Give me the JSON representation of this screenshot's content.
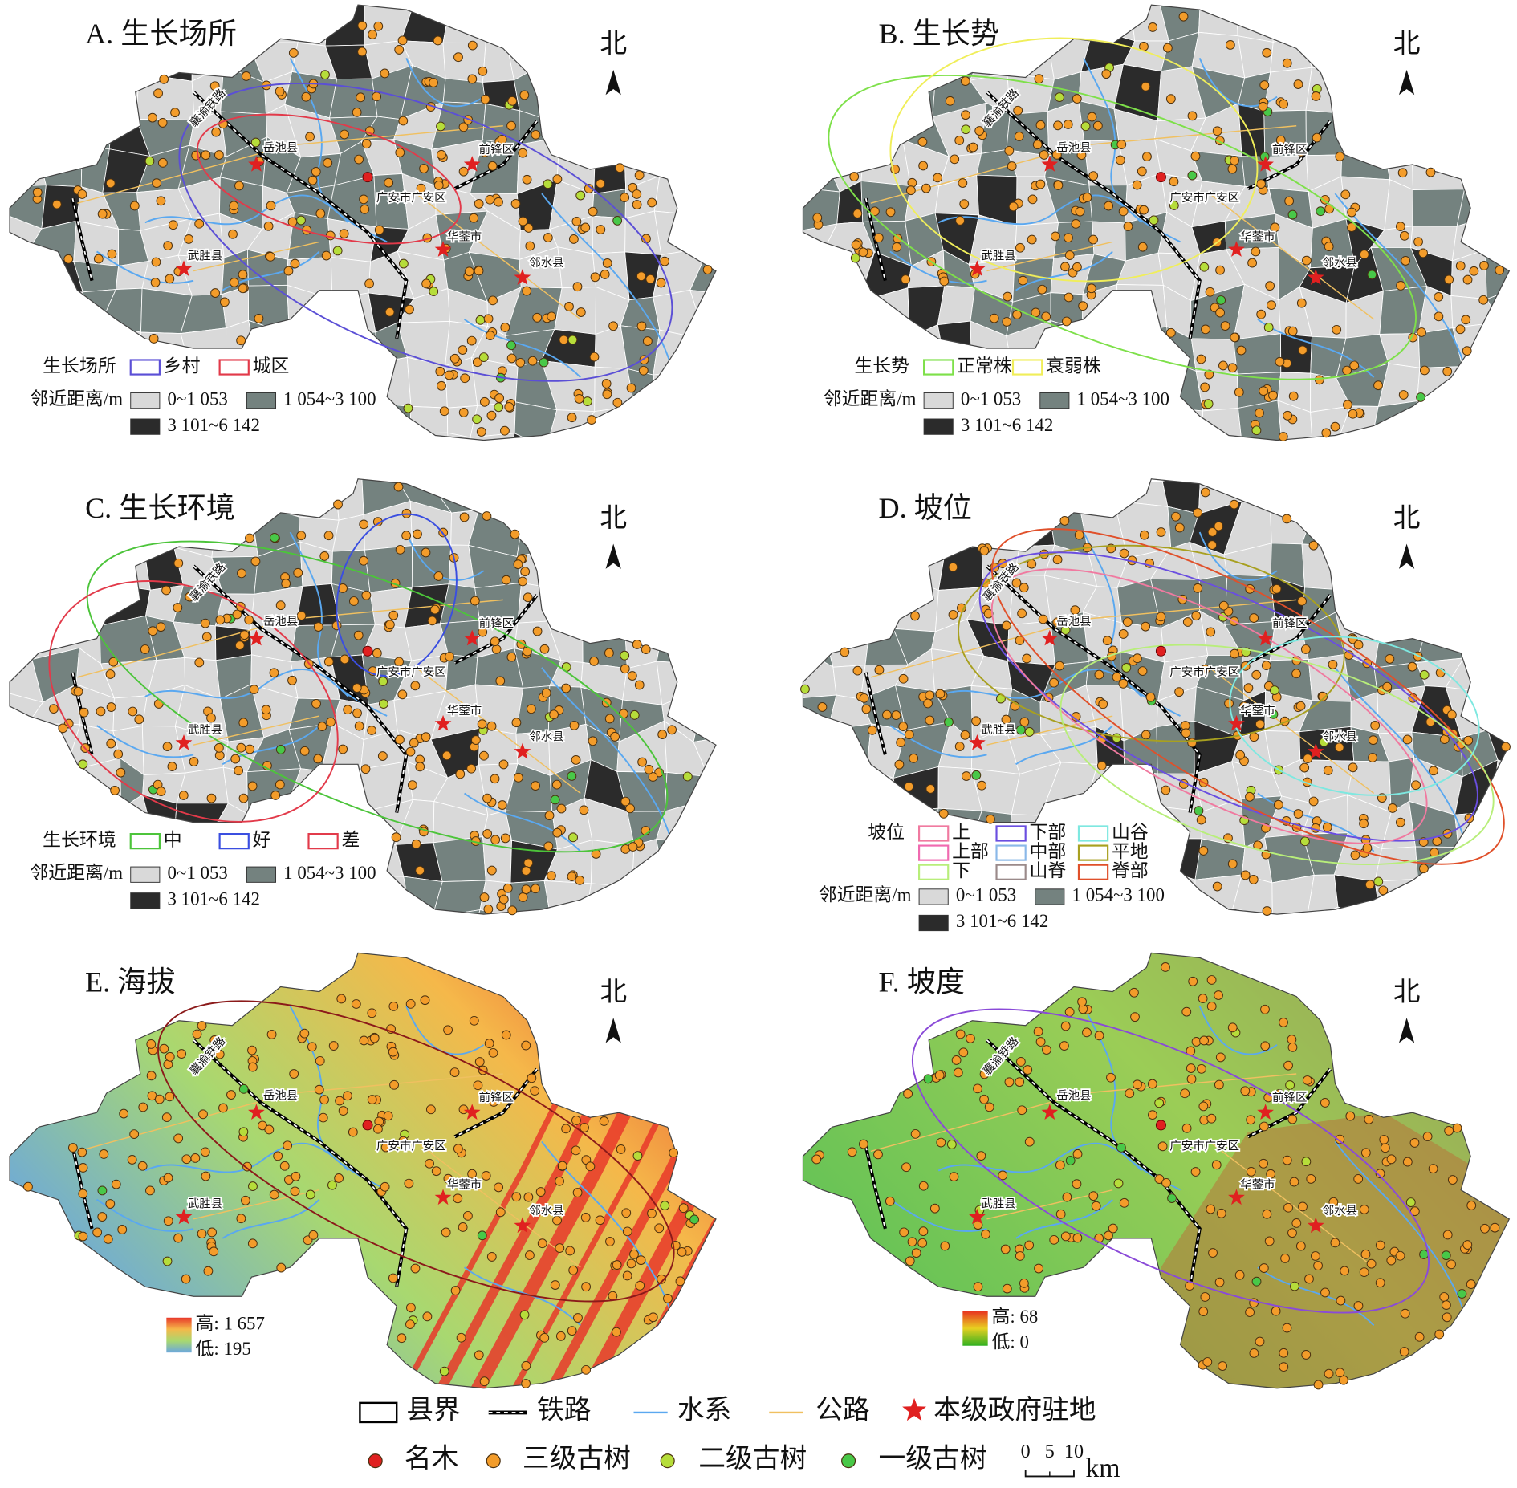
{
  "panels": [
    {
      "title": "A. 生长场所",
      "north": "北",
      "map": "gray",
      "places": [
        "岳池县",
        "前锋区",
        "广安市广安区",
        "华蓥市",
        "武胜县",
        "邻水县"
      ],
      "railway_label": "襄渝铁路",
      "groups": {
        "title": "生长场所",
        "items": [
          {
            "label": "乡村",
            "color": "#5b4fd6"
          },
          {
            "label": "城区",
            "color": "#e23a4a"
          }
        ]
      },
      "distance": {
        "title": "邻近距离/m",
        "classes": [
          {
            "label": "0~1 053",
            "color": "#d9d9d9"
          },
          {
            "label": "1 054~3 100",
            "color": "#74827f"
          },
          {
            "label": "3 101~6 142",
            "color": "#2b2b2b"
          }
        ]
      }
    },
    {
      "title": "B. 生长势",
      "north": "北",
      "map": "gray",
      "places": [
        "岳池县",
        "前锋区",
        "广安市广安区",
        "华蓥市",
        "武胜县",
        "邻水县"
      ],
      "railway_label": "襄渝铁路",
      "groups": {
        "title": "生长势",
        "items": [
          {
            "label": "正常株",
            "color": "#7ee04a"
          },
          {
            "label": "衰弱株",
            "color": "#f0ee5a"
          }
        ]
      },
      "distance": {
        "title": "邻近距离/m",
        "classes": [
          {
            "label": "0~1 053",
            "color": "#d9d9d9"
          },
          {
            "label": "1 054~3 100",
            "color": "#74827f"
          },
          {
            "label": "3 101~6 142",
            "color": "#2b2b2b"
          }
        ]
      }
    },
    {
      "title": "C. 生长环境",
      "north": "北",
      "map": "gray",
      "places": [
        "岳池县",
        "前锋区",
        "广安市广安区",
        "华蓥市",
        "武胜县",
        "邻水县"
      ],
      "railway_label": "襄渝铁路",
      "groups": {
        "title": "生长环境",
        "items": [
          {
            "label": "中",
            "color": "#4cc43a"
          },
          {
            "label": "好",
            "color": "#3a4ee0"
          },
          {
            "label": "差",
            "color": "#e23a4a"
          }
        ]
      },
      "distance": {
        "title": "邻近距离/m",
        "classes": [
          {
            "label": "0~1 053",
            "color": "#d9d9d9"
          },
          {
            "label": "1 054~3 100",
            "color": "#74827f"
          },
          {
            "label": "3 101~6 142",
            "color": "#2b2b2b"
          }
        ]
      }
    },
    {
      "title": "D. 坡位",
      "north": "北",
      "map": "gray",
      "places": [
        "岳池县",
        "前锋区",
        "广安市广安区",
        "华蓥市",
        "武胜县",
        "邻水县"
      ],
      "railway_label": "襄渝铁路",
      "groups": {
        "title": "坡位",
        "items": [
          {
            "label": "上",
            "color": "#f07aa0"
          },
          {
            "label": "下部",
            "color": "#6a4ee0"
          },
          {
            "label": "山谷",
            "color": "#7ee8e0"
          },
          {
            "label": "上部",
            "color": "#f06ab0"
          },
          {
            "label": "中部",
            "color": "#8ab8e8"
          },
          {
            "label": "平地",
            "color": "#a8a020"
          },
          {
            "label": "下",
            "color": "#b8ee7a"
          },
          {
            "label": "山脊",
            "color": "#9a8a8a"
          },
          {
            "label": "脊部",
            "color": "#e0502a"
          }
        ]
      },
      "distance": {
        "title": "邻近距离/m",
        "classes": [
          {
            "label": "0~1 053",
            "color": "#d9d9d9"
          },
          {
            "label": "1 054~3 100",
            "color": "#74827f"
          },
          {
            "label": "3 101~6 142",
            "color": "#2b2b2b"
          }
        ]
      }
    },
    {
      "title": "E. 海拔",
      "north": "北",
      "map": "elevation",
      "places": [
        "岳池县",
        "前锋区",
        "广安市广安区",
        "华蓥市",
        "武胜县",
        "邻水县"
      ],
      "railway_label": "襄渝铁路",
      "ellipse_color": "#8b1a1a",
      "ramp": {
        "high": "高: 1 657",
        "low": "低: 195",
        "colors": [
          "#e8382a",
          "#f5b84a",
          "#a8d870",
          "#6aa6e0"
        ]
      }
    },
    {
      "title": "F. 坡度",
      "north": "北",
      "map": "slope",
      "places": [
        "岳池县",
        "前锋区",
        "广安市广安区",
        "华蓥市",
        "武胜县",
        "邻水县"
      ],
      "railway_label": "襄渝铁路",
      "ellipse_color": "#8a4ad8",
      "ramp": {
        "high": "高: 68",
        "low": "低: 0",
        "colors": [
          "#e83020",
          "#e8d020",
          "#30b020"
        ]
      }
    }
  ],
  "legend": {
    "items": [
      {
        "label": "县界",
        "color": "#000000"
      },
      {
        "label": "铁路",
        "color": "#000000"
      },
      {
        "label": "水系",
        "color": "#5aa8f0"
      },
      {
        "label": "公路",
        "color": "#f0c060"
      },
      {
        "label": "本级政府驻地",
        "color": "#e02020"
      }
    ],
    "trees": [
      {
        "label": "名木",
        "color": "#e02020"
      },
      {
        "label": "三级古树",
        "color": "#f39c2a"
      },
      {
        "label": "二级古树",
        "color": "#b6dd3a"
      },
      {
        "label": "一级古树",
        "color": "#48c848"
      }
    ],
    "scale": {
      "ticks": [
        0,
        5,
        10
      ],
      "unit": "km"
    }
  }
}
